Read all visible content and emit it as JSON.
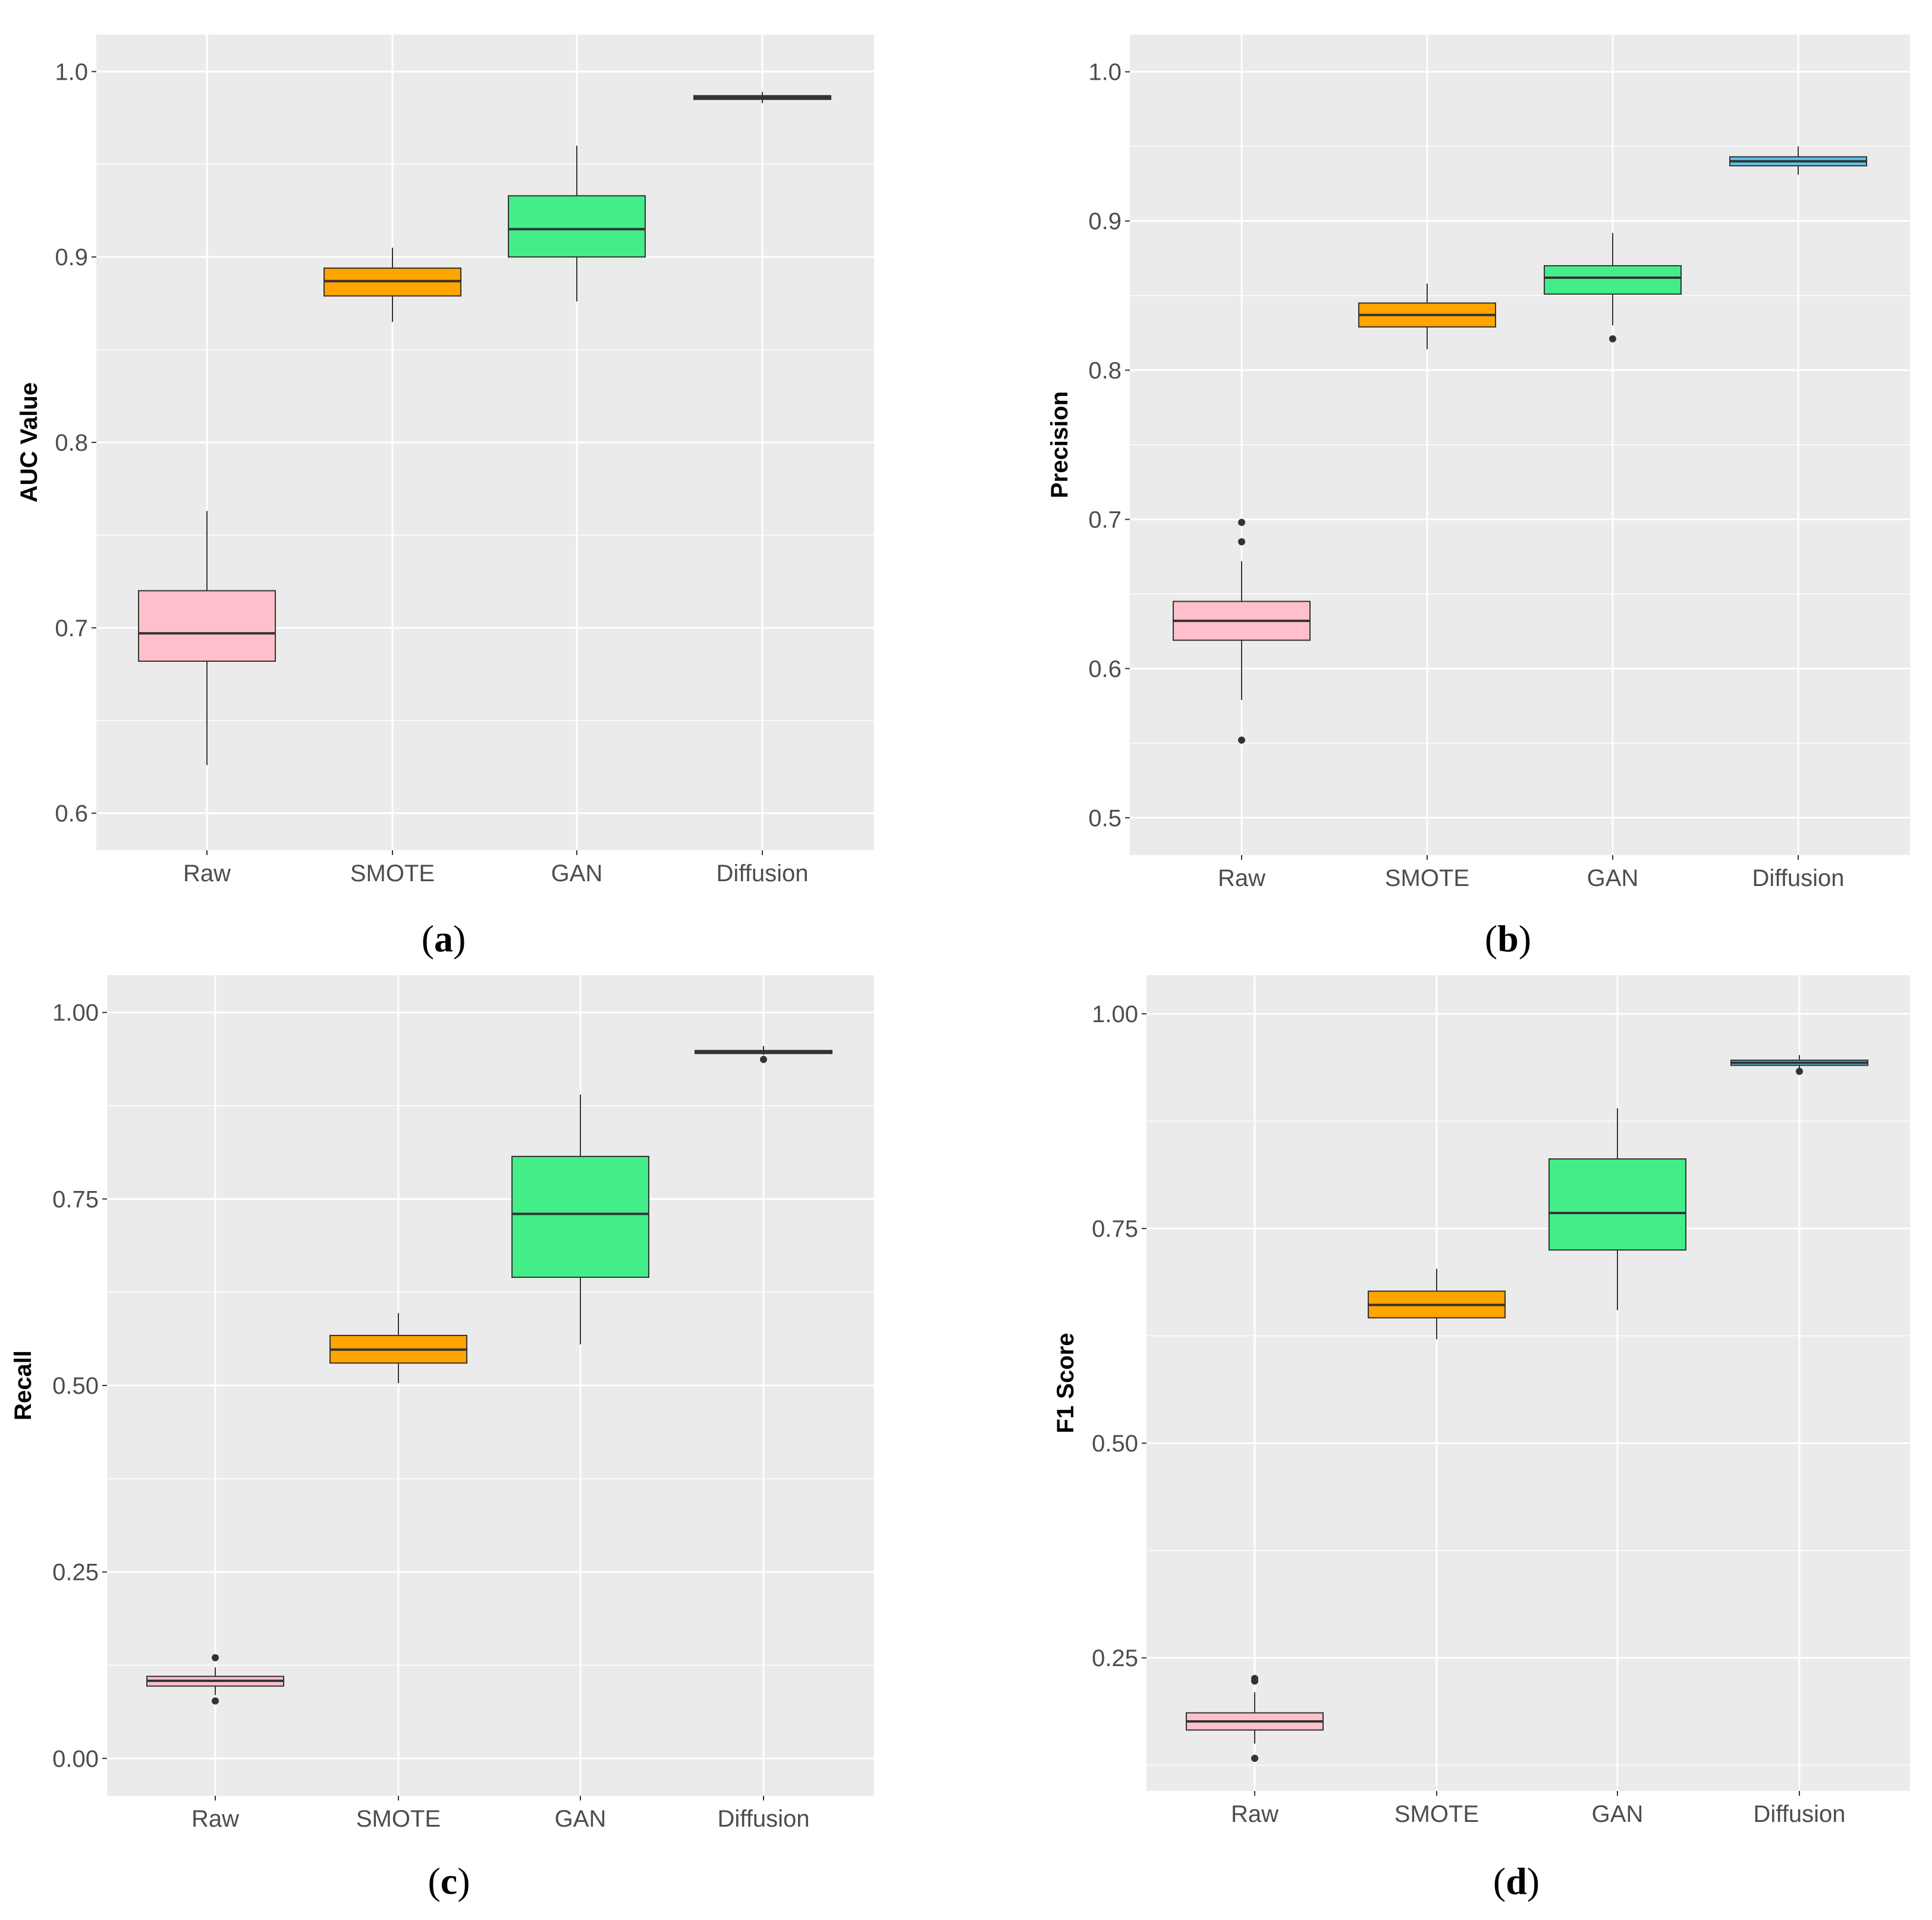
{
  "colors": {
    "panel_bg": "#EBEBEB",
    "grid": "#FFFFFF",
    "whisker": "#333333",
    "box_outline": "#333333",
    "Raw": "#FFC0CB",
    "SMOTE": "#FFA500",
    "GAN": "#43EE88",
    "Diffusion": "#5BC4E6"
  },
  "chart_data": [
    {
      "type": "boxplot",
      "caption_letter": "a",
      "ylabel": "AUC Value",
      "ylim": [
        0.58,
        1.02
      ],
      "yticks": [
        0.6,
        0.7,
        0.8,
        0.9,
        1.0
      ],
      "ytick_labels": [
        "0.6",
        "0.7",
        "0.8",
        "0.9",
        "1.0"
      ],
      "categories": [
        "Raw",
        "SMOTE",
        "GAN",
        "Diffusion"
      ],
      "boxes": [
        {
          "category": "Raw",
          "min": 0.626,
          "q1": 0.682,
          "median": 0.697,
          "q3": 0.72,
          "max": 0.763,
          "outliers": []
        },
        {
          "category": "SMOTE",
          "min": 0.865,
          "q1": 0.879,
          "median": 0.887,
          "q3": 0.894,
          "max": 0.905,
          "outliers": []
        },
        {
          "category": "GAN",
          "min": 0.876,
          "q1": 0.9,
          "median": 0.915,
          "q3": 0.933,
          "max": 0.96,
          "outliers": []
        },
        {
          "category": "Diffusion",
          "min": 0.983,
          "q1": 0.985,
          "median": 0.986,
          "q3": 0.987,
          "max": 0.989,
          "outliers": []
        }
      ]
    },
    {
      "type": "boxplot",
      "caption_letter": "b",
      "ylabel": "Precision",
      "ylim": [
        0.475,
        1.025
      ],
      "yticks": [
        0.5,
        0.6,
        0.7,
        0.8,
        0.9,
        1.0
      ],
      "ytick_labels": [
        "0.5",
        "0.6",
        "0.7",
        "0.8",
        "0.9",
        "1.0"
      ],
      "categories": [
        "Raw",
        "SMOTE",
        "GAN",
        "Diffusion"
      ],
      "boxes": [
        {
          "category": "Raw",
          "min": 0.579,
          "q1": 0.619,
          "median": 0.632,
          "q3": 0.645,
          "max": 0.672,
          "outliers": [
            0.552,
            0.685,
            0.698
          ]
        },
        {
          "category": "SMOTE",
          "min": 0.814,
          "q1": 0.829,
          "median": 0.837,
          "q3": 0.845,
          "max": 0.858,
          "outliers": []
        },
        {
          "category": "GAN",
          "min": 0.83,
          "q1": 0.851,
          "median": 0.862,
          "q3": 0.87,
          "max": 0.892,
          "outliers": [
            0.821
          ]
        },
        {
          "category": "Diffusion",
          "min": 0.931,
          "q1": 0.937,
          "median": 0.94,
          "q3": 0.943,
          "max": 0.95,
          "outliers": []
        }
      ]
    },
    {
      "type": "boxplot",
      "caption_letter": "c",
      "ylabel": "Recall",
      "ylim": [
        -0.05,
        1.05
      ],
      "yticks": [
        0,
        0.25,
        0.5,
        0.75,
        1.0
      ],
      "ytick_labels": [
        "0.00",
        "0.25",
        "0.50",
        "0.75",
        "1.00"
      ],
      "categories": [
        "Raw",
        "SMOTE",
        "GAN",
        "Diffusion"
      ],
      "boxes": [
        {
          "category": "Raw",
          "min": 0.085,
          "q1": 0.097,
          "median": 0.104,
          "q3": 0.11,
          "max": 0.122,
          "outliers": [
            0.077,
            0.135
          ]
        },
        {
          "category": "SMOTE",
          "min": 0.503,
          "q1": 0.53,
          "median": 0.548,
          "q3": 0.567,
          "max": 0.597,
          "outliers": []
        },
        {
          "category": "GAN",
          "min": 0.555,
          "q1": 0.645,
          "median": 0.73,
          "q3": 0.807,
          "max": 0.89,
          "outliers": []
        },
        {
          "category": "Diffusion",
          "min": 0.943,
          "q1": 0.945,
          "median": 0.947,
          "q3": 0.949,
          "max": 0.955,
          "outliers": [
            0.937
          ]
        }
      ]
    },
    {
      "type": "boxplot",
      "caption_letter": "d",
      "ylabel": "F1 Score",
      "ylim": [
        0.095,
        1.045
      ],
      "yticks": [
        0.25,
        0.5,
        0.75,
        1.0
      ],
      "ytick_labels": [
        "0.25",
        "0.50",
        "0.75",
        "1.00"
      ],
      "categories": [
        "Raw",
        "SMOTE",
        "GAN",
        "Diffusion"
      ],
      "boxes": [
        {
          "category": "Raw",
          "min": 0.15,
          "q1": 0.166,
          "median": 0.176,
          "q3": 0.186,
          "max": 0.21,
          "outliers": [
            0.133,
            0.223,
            0.226
          ]
        },
        {
          "category": "SMOTE",
          "min": 0.621,
          "q1": 0.646,
          "median": 0.661,
          "q3": 0.677,
          "max": 0.703,
          "outliers": []
        },
        {
          "category": "GAN",
          "min": 0.655,
          "q1": 0.725,
          "median": 0.768,
          "q3": 0.831,
          "max": 0.89,
          "outliers": []
        },
        {
          "category": "Diffusion",
          "min": 0.935,
          "q1": 0.94,
          "median": 0.943,
          "q3": 0.946,
          "max": 0.952,
          "outliers": [
            0.933
          ]
        }
      ]
    }
  ]
}
